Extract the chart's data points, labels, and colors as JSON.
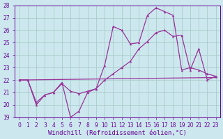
{
  "xlabel": "Windchill (Refroidissement éolien,°C)",
  "xlim": [
    -0.5,
    23.5
  ],
  "ylim": [
    19,
    28
  ],
  "xticks": [
    0,
    1,
    2,
    3,
    4,
    5,
    6,
    7,
    8,
    9,
    10,
    11,
    12,
    13,
    14,
    15,
    16,
    17,
    18,
    19,
    20,
    21,
    22,
    23
  ],
  "yticks": [
    19,
    20,
    21,
    22,
    23,
    24,
    25,
    26,
    27,
    28
  ],
  "bg_color": "#cce8ee",
  "grid_color": "#aacccc",
  "line_color": "#993399",
  "line1_x": [
    0,
    23
  ],
  "line1_y": [
    22.0,
    22.2
  ],
  "line2_x": [
    0,
    1,
    2,
    3,
    4,
    5,
    6,
    7,
    8,
    9,
    10,
    11,
    12,
    13,
    14,
    15,
    16,
    17,
    18,
    19,
    20,
    21,
    22,
    23
  ],
  "line2_y": [
    22.0,
    22.0,
    20.0,
    20.8,
    21.0,
    21.7,
    21.1,
    20.9,
    21.1,
    21.3,
    22.0,
    22.5,
    23.0,
    23.5,
    24.5,
    25.1,
    25.8,
    26.0,
    25.5,
    25.6,
    22.8,
    24.5,
    22.0,
    22.3
  ],
  "line3_x": [
    0,
    1,
    2,
    3,
    4,
    5,
    6,
    7,
    8,
    9,
    10,
    11,
    12,
    13,
    14,
    15,
    16,
    17,
    18,
    19,
    20,
    21,
    22,
    23
  ],
  "line3_y": [
    22.0,
    22.0,
    20.2,
    20.8,
    21.0,
    21.8,
    19.0,
    19.5,
    21.0,
    21.3,
    23.2,
    26.3,
    26.0,
    24.9,
    25.0,
    27.2,
    27.8,
    27.5,
    27.2,
    22.8,
    23.0,
    22.8,
    22.5,
    22.3
  ],
  "font_color": "#660099",
  "tick_fontsize": 5.5,
  "label_fontsize": 6.5
}
